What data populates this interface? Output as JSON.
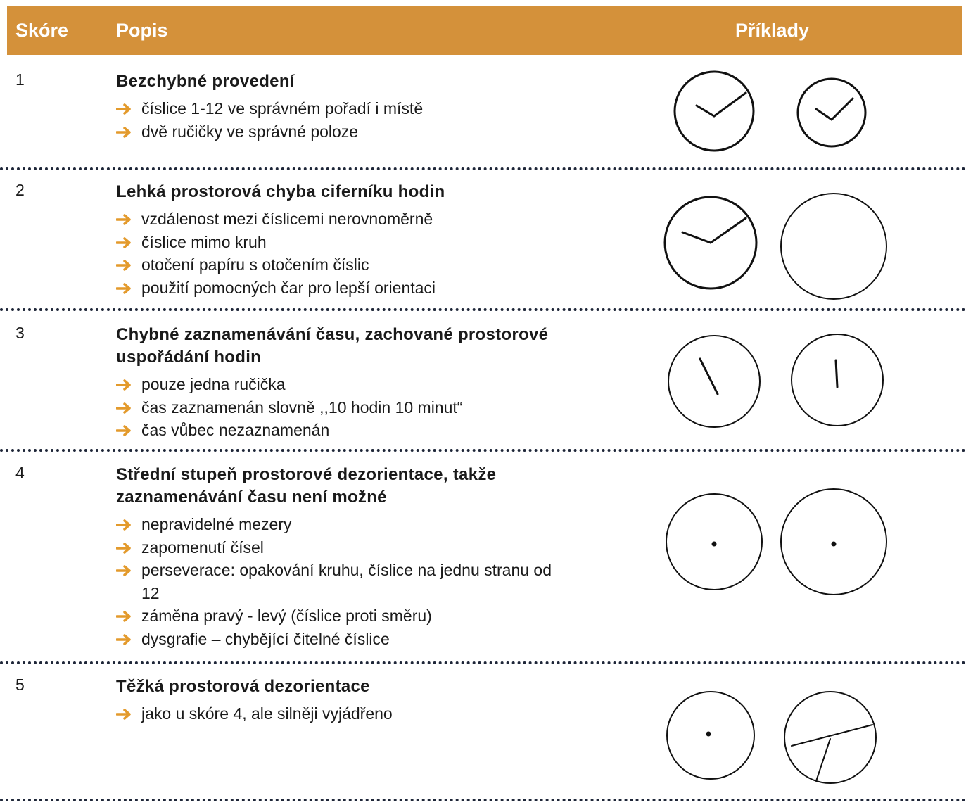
{
  "header": {
    "score": "Skóre",
    "description": "Popis",
    "examples": "Příklady"
  },
  "rows": [
    {
      "score": 1,
      "title": "Bezchybné provedení",
      "items": [
        "číslice 1-12 ve správném pořadí i místě",
        "dvě ručičky ve správné poloze"
      ]
    },
    {
      "score": 2,
      "title": "Lehká prostorová chyba ciferníku hodin",
      "items": [
        "vzdálenost mezi číslicemi nerovnoměrně",
        "číslice mimo kruh",
        "otočení papíru s otočením číslic",
        "použití pomocných čar pro lepší orientaci"
      ]
    },
    {
      "score": 3,
      "title": "Chybné zaznamenávání času, zachované prostorové uspořádání hodin",
      "items": [
        "pouze jedna ručička",
        "čas zaznamenán slovně ,,10 hodin 10 minut“",
        "čas vůbec nezaznamenán"
      ]
    },
    {
      "score": 4,
      "title": "Střední stupeň prostorové dezorientace, takže zaznamenávání času není možné",
      "items": [
        "nepravidelné mezery",
        "zapomenutí čísel",
        "perseverace: opakování kruhu, číslice na jednu stranu od 12",
        "záměna pravý - levý (číslice proti směru)",
        "dysgrafie – chybějící čitelné číslice"
      ]
    },
    {
      "score": 5,
      "title": "Těžká prostorová dezorientace",
      "items": [
        "jako u skóre 4, ale silněji vyjádřeno"
      ]
    }
  ]
}
